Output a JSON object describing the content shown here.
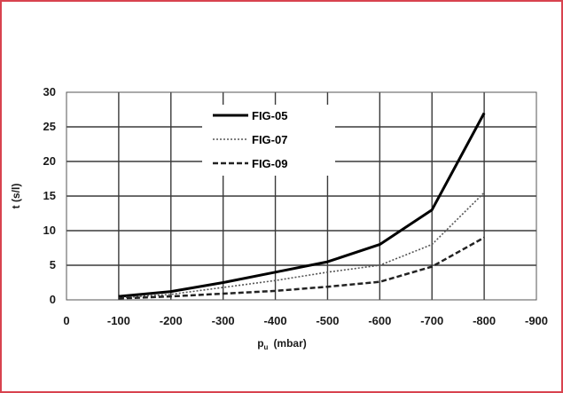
{
  "frame_color": "#d8434f",
  "chart_data": {
    "type": "line",
    "title": "",
    "xlabel": "p",
    "xlabel_sub": "u",
    "xlabel_unit": "(mbar)",
    "ylabel": "t (s/l)",
    "xlim": [
      0,
      -900
    ],
    "ylim": [
      0,
      30
    ],
    "x_ticks": [
      0,
      -100,
      -200,
      -300,
      -400,
      -500,
      -600,
      -700,
      -800,
      -900
    ],
    "y_ticks": [
      0,
      5,
      10,
      15,
      20,
      25,
      30
    ],
    "grid": true,
    "legend_position": "top-center",
    "x": [
      -100,
      -200,
      -300,
      -400,
      -500,
      -600,
      -700,
      -800
    ],
    "series": [
      {
        "name": "FIG-05",
        "style": "solid",
        "color": "#000000",
        "width": 3,
        "values": [
          0.5,
          1.2,
          2.5,
          4.0,
          5.5,
          8.0,
          13.0,
          27.0
        ]
      },
      {
        "name": "FIG-07",
        "style": "dotted",
        "color": "#555555",
        "width": 1.6,
        "values": [
          0.3,
          0.8,
          1.8,
          2.8,
          4.0,
          5.0,
          8.0,
          15.5
        ]
      },
      {
        "name": "FIG-09",
        "style": "dashed",
        "color": "#222222",
        "width": 2.5,
        "values": [
          0.2,
          0.5,
          0.9,
          1.3,
          1.9,
          2.6,
          4.8,
          9.0
        ]
      }
    ]
  }
}
